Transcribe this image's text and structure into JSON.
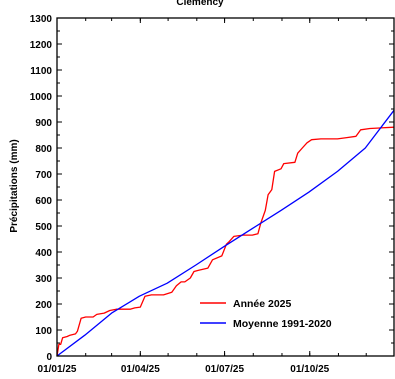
{
  "chart_data": {
    "type": "line",
    "title": "Clemency",
    "ylabel": "Précipitations (mm)",
    "xlabel": "",
    "ylim": [
      0,
      1300
    ],
    "yticks": [
      0,
      100,
      200,
      300,
      400,
      500,
      600,
      700,
      800,
      900,
      1000,
      1100,
      1200,
      1300
    ],
    "xlim": [
      "2025-01-01",
      "2025-12-31"
    ],
    "xticks": [
      {
        "date": "2025-01-01",
        "label": "01/01/25"
      },
      {
        "date": "2025-04-01",
        "label": "01/04/25"
      },
      {
        "date": "2025-07-01",
        "label": "01/07/25"
      },
      {
        "date": "2025-10-01",
        "label": "01/10/25"
      }
    ],
    "legend_position": "bottom-right",
    "series": [
      {
        "name": "Année 2025",
        "color": "#ff0000",
        "points": [
          [
            "2025-01-01",
            0
          ],
          [
            "2025-01-03",
            45
          ],
          [
            "2025-01-05",
            45
          ],
          [
            "2025-01-07",
            70
          ],
          [
            "2025-01-12",
            75
          ],
          [
            "2025-01-15",
            80
          ],
          [
            "2025-01-21",
            85
          ],
          [
            "2025-01-23",
            95
          ],
          [
            "2025-01-27",
            145
          ],
          [
            "2025-02-01",
            150
          ],
          [
            "2025-02-09",
            150
          ],
          [
            "2025-02-13",
            160
          ],
          [
            "2025-02-21",
            165
          ],
          [
            "2025-02-27",
            175
          ],
          [
            "2025-03-06",
            180
          ],
          [
            "2025-03-21",
            180
          ],
          [
            "2025-03-26",
            185
          ],
          [
            "2025-04-01",
            188
          ],
          [
            "2025-04-06",
            230
          ],
          [
            "2025-04-13",
            235
          ],
          [
            "2025-04-26",
            235
          ],
          [
            "2025-05-05",
            245
          ],
          [
            "2025-05-10",
            270
          ],
          [
            "2025-05-15",
            285
          ],
          [
            "2025-05-19",
            285
          ],
          [
            "2025-05-25",
            300
          ],
          [
            "2025-05-29",
            325
          ],
          [
            "2025-06-03",
            330
          ],
          [
            "2025-06-13",
            338
          ],
          [
            "2025-06-18",
            370
          ],
          [
            "2025-06-28",
            385
          ],
          [
            "2025-07-03",
            430
          ],
          [
            "2025-07-06",
            440
          ],
          [
            "2025-07-11",
            460
          ],
          [
            "2025-07-21",
            465
          ],
          [
            "2025-07-31",
            465
          ],
          [
            "2025-08-06",
            470
          ],
          [
            "2025-08-09",
            510
          ],
          [
            "2025-08-14",
            560
          ],
          [
            "2025-08-17",
            620
          ],
          [
            "2025-08-21",
            640
          ],
          [
            "2025-08-24",
            710
          ],
          [
            "2025-08-31",
            720
          ],
          [
            "2025-09-03",
            740
          ],
          [
            "2025-09-15",
            745
          ],
          [
            "2025-09-18",
            780
          ],
          [
            "2025-09-23",
            800
          ],
          [
            "2025-09-28",
            820
          ],
          [
            "2025-10-03",
            832
          ],
          [
            "2025-10-13",
            835
          ],
          [
            "2025-10-31",
            835
          ],
          [
            "2025-11-10",
            840
          ],
          [
            "2025-11-20",
            845
          ],
          [
            "2025-11-25",
            870
          ],
          [
            "2025-12-05",
            875
          ],
          [
            "2025-12-31",
            880
          ]
        ]
      },
      {
        "name": "Moyenne 1991-2020",
        "color": "#0000ff",
        "points": [
          [
            "2025-01-01",
            0
          ],
          [
            "2025-01-31",
            80
          ],
          [
            "2025-03-01",
            165
          ],
          [
            "2025-03-31",
            230
          ],
          [
            "2025-04-30",
            280
          ],
          [
            "2025-05-31",
            350
          ],
          [
            "2025-06-30",
            420
          ],
          [
            "2025-07-31",
            490
          ],
          [
            "2025-08-31",
            560
          ],
          [
            "2025-09-30",
            630
          ],
          [
            "2025-10-31",
            710
          ],
          [
            "2025-11-30",
            800
          ],
          [
            "2025-12-31",
            945
          ]
        ]
      }
    ]
  }
}
